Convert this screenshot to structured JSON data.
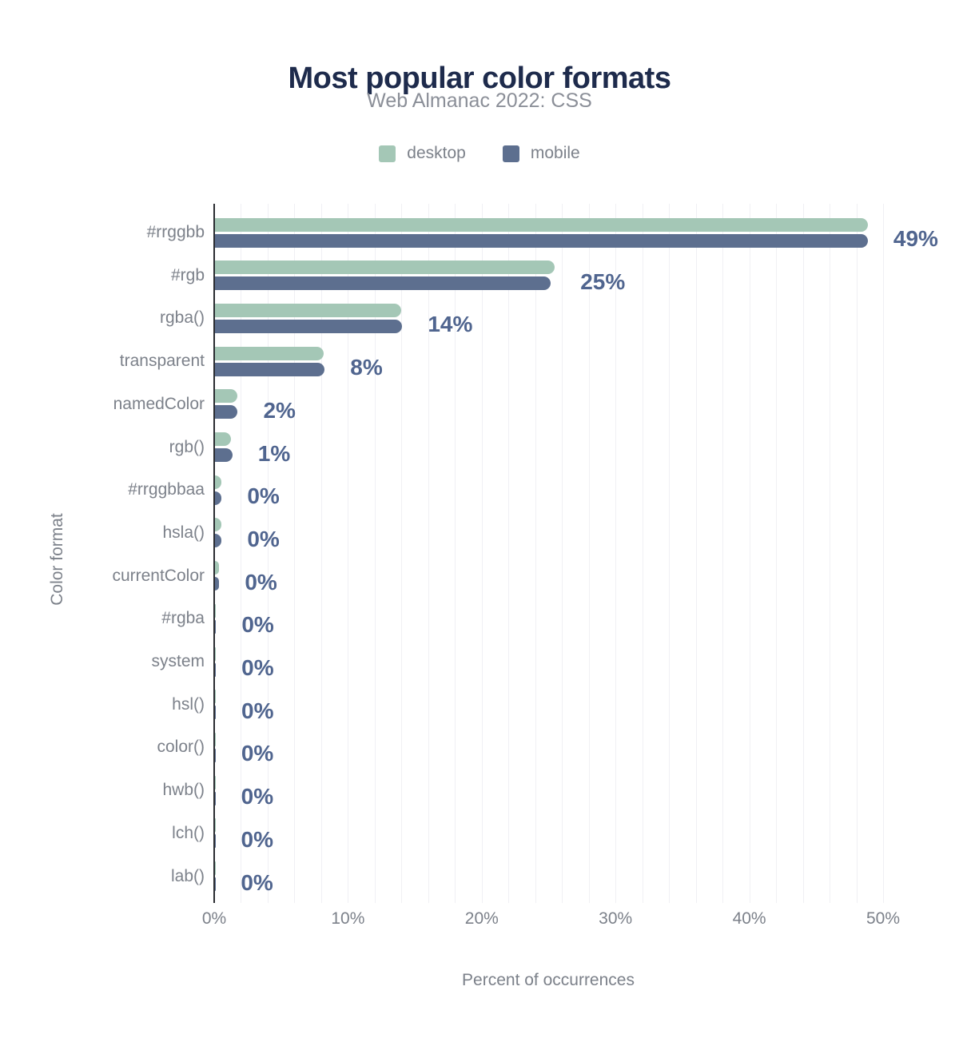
{
  "title": "Most popular color formats",
  "subtitle": "Web Almanac 2022: CSS",
  "colors": {
    "title": "#1e2b4c",
    "subtitle": "#8b8f98",
    "axis_text": "#7c818a",
    "value_label": "#50658f",
    "desktop_bar": "#a4c7b6",
    "mobile_bar": "#5d6f8f",
    "gridline": "#f0f0f4",
    "axis_line": "#2a2c31",
    "background": "#ffffff"
  },
  "chart_data": {
    "type": "bar",
    "orientation": "horizontal",
    "title": "Most popular color formats",
    "subtitle": "Web Almanac 2022: CSS",
    "xlabel": "Percent of occurrences",
    "ylabel": "Color format",
    "xlim": [
      0,
      50
    ],
    "xticks": [
      0,
      10,
      20,
      30,
      40,
      50
    ],
    "xtick_labels": [
      "0%",
      "10%",
      "20%",
      "30%",
      "40%",
      "50%"
    ],
    "grid": "vertical minor gridlines every 2%",
    "minor_grid_step": 2,
    "legend_position": "top",
    "categories": [
      "#rrggbb",
      "#rgb",
      "rgba()",
      "transparent",
      "namedColor",
      "rgb()",
      "#rrggbbaa",
      "hsla()",
      "currentColor",
      "#rgba",
      "system",
      "hsl()",
      "color()",
      "hwb()",
      "lch()",
      "lab()"
    ],
    "series": [
      {
        "name": "desktop",
        "color": "#a4c7b6",
        "values": [
          48.8,
          25.4,
          13.9,
          8.1,
          1.7,
          1.2,
          0.5,
          0.5,
          0.32,
          0.08,
          0.07,
          0.06,
          0.05,
          0.04,
          0.03,
          0.02
        ]
      },
      {
        "name": "mobile",
        "color": "#5d6f8f",
        "values": [
          48.8,
          25.1,
          14.0,
          8.2,
          1.7,
          1.3,
          0.45,
          0.45,
          0.3,
          0.08,
          0.07,
          0.06,
          0.05,
          0.04,
          0.03,
          0.02
        ]
      }
    ],
    "value_labels": [
      "49%",
      "25%",
      "14%",
      "8%",
      "2%",
      "1%",
      "0%",
      "0%",
      "0%",
      "0%",
      "0%",
      "0%",
      "0%",
      "0%",
      " 0%",
      "0%"
    ]
  }
}
